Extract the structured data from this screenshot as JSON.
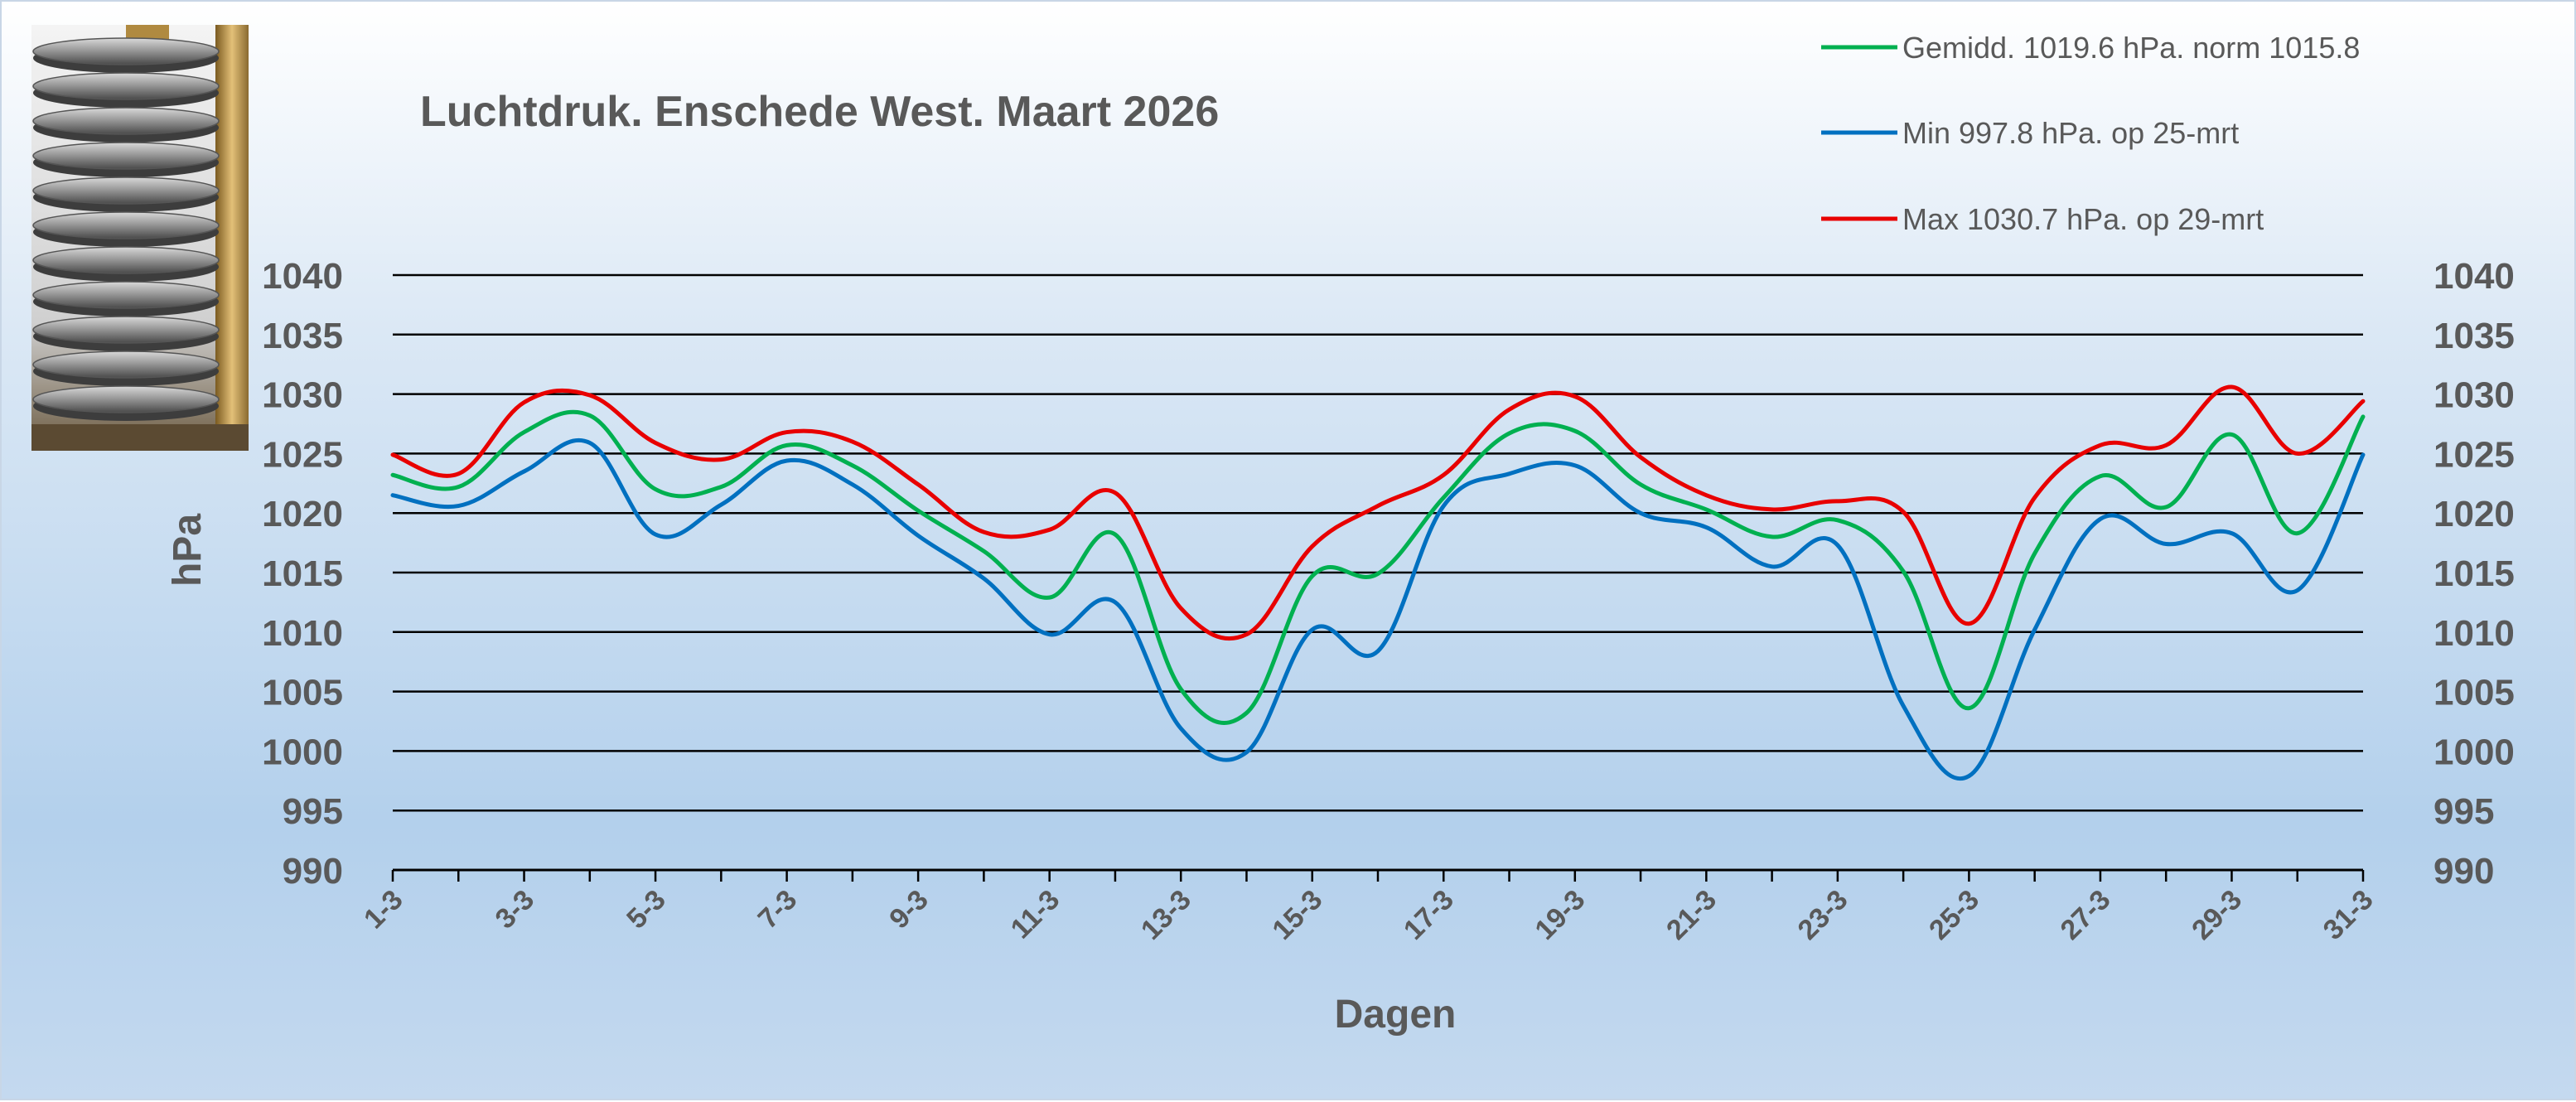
{
  "chart_data": {
    "type": "line",
    "title": "Luchtdruk. Enschede West. Maart 2026",
    "xlabel": "Dagen",
    "ylabel": "hPa",
    "ylim": [
      990,
      1040
    ],
    "yticks": [
      "990",
      "995",
      "1000",
      "1005",
      "1010",
      "1015",
      "1020",
      "1025",
      "1030",
      "1035",
      "1040"
    ],
    "x": [
      1,
      2,
      3,
      4,
      5,
      6,
      7,
      8,
      9,
      10,
      11,
      12,
      13,
      14,
      15,
      16,
      17,
      18,
      19,
      20,
      21,
      22,
      23,
      24,
      25,
      26,
      27,
      28,
      29,
      30,
      31
    ],
    "xtick_labels": [
      "1-3",
      "3-3",
      "5-3",
      "7-3",
      "9-3",
      "11-3",
      "13-3",
      "15-3",
      "17-3",
      "19-3",
      "21-3",
      "23-3",
      "25-3",
      "27-3",
      "29-3",
      "31-3"
    ],
    "grid": true,
    "legend_position": "top-right",
    "series": [
      {
        "name": "Gemidd. 1019.6 hPa.  norm 1015.8",
        "color": "#00b050",
        "values": [
          1023.2,
          1022.2,
          1026.8,
          1028.2,
          1022.0,
          1022.2,
          1025.7,
          1024.0,
          1020.2,
          1016.8,
          1012.9,
          1018.2,
          1005.2,
          1003.2,
          1014.7,
          1014.9,
          1021.3,
          1026.7,
          1026.9,
          1022.4,
          1020.3,
          1018.0,
          1019.4,
          1015.1,
          1003.6,
          1016.6,
          1023.1,
          1020.5,
          1026.6,
          1018.3,
          1028.1
        ]
      },
      {
        "name": "Min 997.8 hPa.  op 25-mrt",
        "color": "#0070c0",
        "values": [
          1021.5,
          1020.6,
          1023.5,
          1025.9,
          1018.2,
          1020.7,
          1024.4,
          1022.4,
          1018.1,
          1014.5,
          1009.8,
          1012.5,
          1001.9,
          999.9,
          1010.2,
          1008.4,
          1020.6,
          1023.3,
          1024.0,
          1020.0,
          1018.8,
          1015.5,
          1017.3,
          1003.8,
          997.9,
          1010.2,
          1019.5,
          1017.4,
          1018.3,
          1013.5,
          1024.9
        ]
      },
      {
        "name": "Max 1030.7 hPa.  op 29-mrt",
        "color": "#e80000",
        "values": [
          1024.9,
          1023.3,
          1029.3,
          1029.9,
          1025.9,
          1024.5,
          1026.8,
          1026.0,
          1022.4,
          1018.4,
          1018.6,
          1021.7,
          1012.0,
          1009.8,
          1017.2,
          1020.6,
          1023.2,
          1028.7,
          1029.8,
          1024.7,
          1021.5,
          1020.3,
          1021.0,
          1020.1,
          1010.7,
          1021.3,
          1025.7,
          1025.7,
          1030.6,
          1025.0,
          1029.4
        ]
      }
    ]
  },
  "image": {
    "description_icon": "barometer-aneroid-capsule-photo"
  },
  "colors": {
    "gridline": "#000000",
    "text": "#595959",
    "background_top": "#ffffff",
    "background_bottom": "#b3d0ec"
  }
}
